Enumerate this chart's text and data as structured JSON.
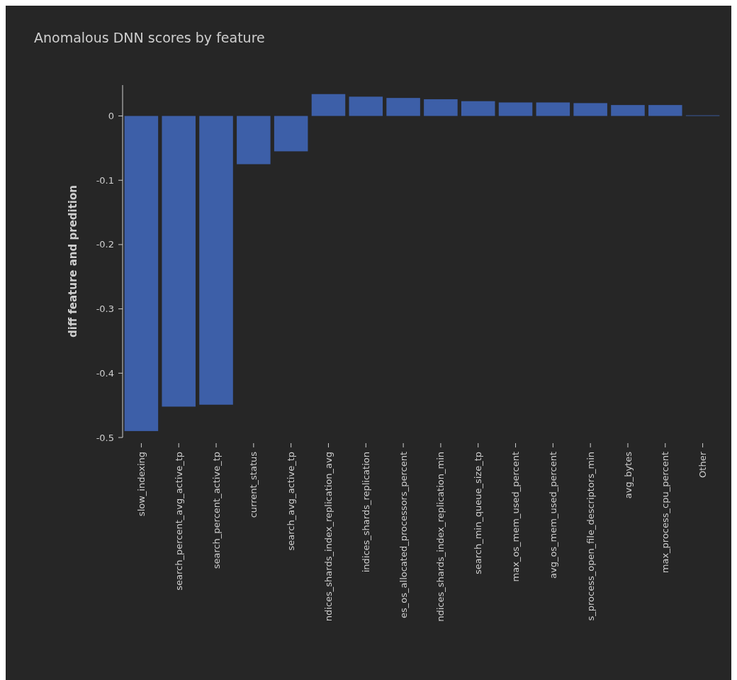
{
  "chart_data": {
    "type": "bar",
    "title": "Anomalous DNN scores by feature",
    "ylabel": "diff feature and predition",
    "categories": [
      "slow_indexing",
      "search_percent_avg_active_tp",
      "search_percent_active_tp",
      "current_status",
      "search_avg_active_tp",
      "ndices_shards_index_replication_avg",
      "indices_shards_replication",
      "es_os_allocated_processors_percent",
      "ndices_shards_index_replication_min",
      "search_min_queue_size_tp",
      "max_os_mem_used_percent",
      "avg_os_mem_used_percent",
      "s_process_open_file_descriptors_min",
      "avg_bytes",
      "max_process_cpu_percent",
      "Other"
    ],
    "values": [
      -0.49,
      -0.452,
      -0.449,
      -0.075,
      -0.055,
      0.034,
      0.03,
      0.028,
      0.026,
      0.023,
      0.021,
      0.021,
      0.02,
      0.017,
      0.017,
      0.001
    ],
    "color": "#3d5fa8",
    "ylim": [
      -0.5,
      0.048
    ],
    "yticks": [
      -0.5,
      -0.4,
      -0.3,
      -0.2,
      -0.1,
      0
    ],
    "grid": false
  }
}
